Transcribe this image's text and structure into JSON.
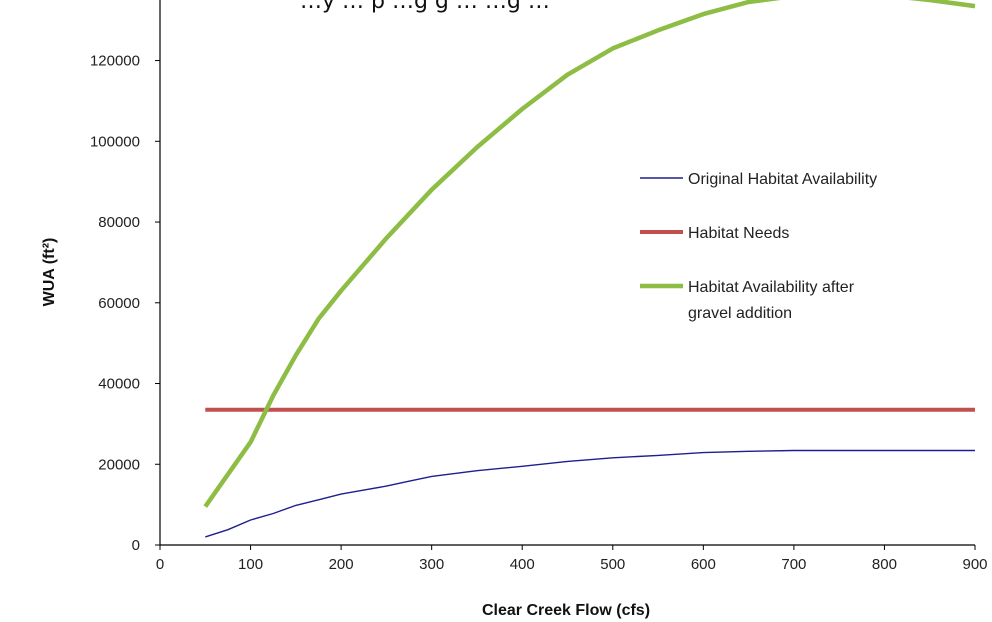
{
  "chart_data": {
    "type": "line",
    "title": "…y … p …g g … …g …",
    "xlabel": "Clear Creek Flow (cfs)",
    "ylabel": "WUA (ft²)",
    "xlim": [
      0,
      900
    ],
    "ylim": [
      0,
      135000
    ],
    "x_ticks": [
      "0",
      "100",
      "200",
      "300",
      "400",
      "500",
      "600",
      "700",
      "800",
      "900"
    ],
    "y_ticks": [
      "0",
      "20000",
      "40000",
      "60000",
      "80000",
      "100000",
      "120000"
    ],
    "legend_position": "right",
    "grid": false,
    "series": [
      {
        "name": "Original Habitat Availability",
        "color": "#1f1f8f",
        "x": [
          50,
          75,
          100,
          125,
          150,
          175,
          200,
          225,
          250,
          275,
          300,
          350,
          400,
          450,
          500,
          550,
          600,
          650,
          700,
          750,
          800,
          850,
          900
        ],
        "y": [
          2000,
          3800,
          6200,
          7800,
          9800,
          11200,
          12600,
          13600,
          14600,
          15800,
          17000,
          18400,
          19500,
          20700,
          21600,
          22200,
          22900,
          23200,
          23400,
          23400,
          23400,
          23400,
          23400
        ]
      },
      {
        "name": "Habitat Needs",
        "color": "#c0504d",
        "x": [
          50,
          900
        ],
        "y": [
          33500,
          33500
        ]
      },
      {
        "name": "Habitat Availability after gravel addition",
        "legend_lines": [
          "Habitat Availability after",
          "gravel addition"
        ],
        "color": "#8dbd45",
        "x": [
          50,
          100,
          125,
          150,
          175,
          200,
          250,
          300,
          350,
          400,
          450,
          500,
          550,
          600,
          650,
          700,
          750,
          800,
          850,
          900
        ],
        "y": [
          9500,
          25500,
          37000,
          47000,
          56000,
          63000,
          76000,
          88000,
          98500,
          108000,
          116500,
          123000,
          127500,
          131500,
          134500,
          136000,
          136200,
          136200,
          135000,
          133500
        ]
      }
    ]
  }
}
